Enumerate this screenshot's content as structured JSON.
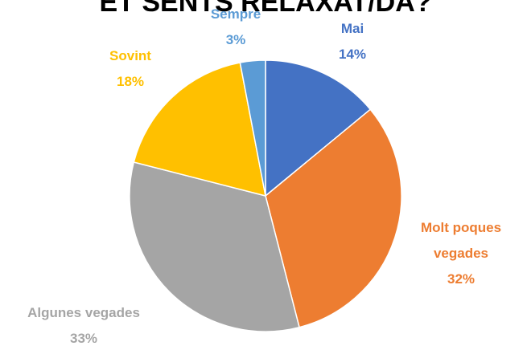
{
  "chart_data": {
    "type": "pie",
    "title": "ET SENTS RELAXAT/DA?",
    "categories": [
      "Mai",
      "Molt poques vegades",
      "Algunes vegades",
      "Sovint",
      "Sempre"
    ],
    "values": [
      14,
      32,
      33,
      18,
      3
    ],
    "value_labels": [
      "14%",
      "32%",
      "33%",
      "18%",
      "3%"
    ],
    "colors": [
      "#4472c4",
      "#ed7d31",
      "#a5a5a5",
      "#ffc000",
      "#5b9bd5"
    ]
  }
}
